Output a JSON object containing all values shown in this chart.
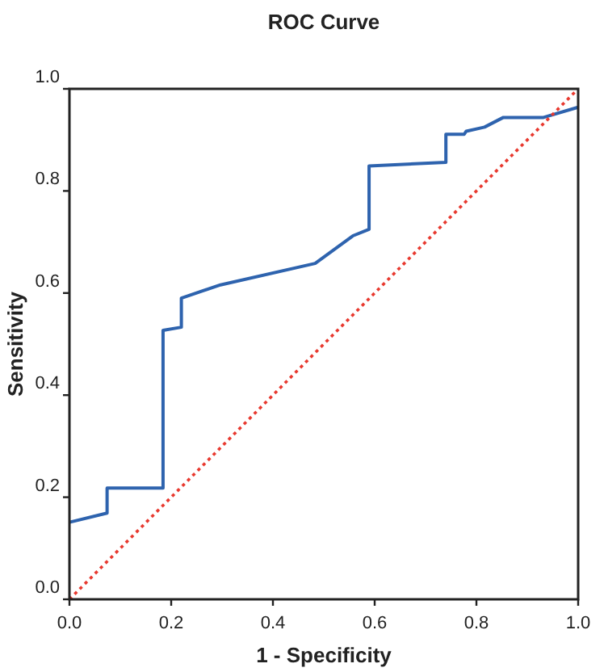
{
  "chart_data": {
    "type": "line",
    "title": "ROC Curve",
    "xlabel": "1 - Specificity",
    "ylabel": "Sensitivity",
    "xlim": [
      0,
      1
    ],
    "ylim": [
      0,
      1
    ],
    "xticks": [
      {
        "value": 0,
        "label": "0.0"
      },
      0.2,
      0.4,
      0.6,
      0.8,
      {
        "value": 1,
        "label": "1.0"
      }
    ],
    "yticks": [
      {
        "value": 0,
        "label": "0.0"
      },
      0.2,
      0.4,
      0.6,
      0.8,
      {
        "value": 1,
        "label": "1.0"
      }
    ],
    "grid": false,
    "series": [
      {
        "color": "#2e63ae",
        "line_style": "solid",
        "x": [
          0,
          0.074,
          0.074,
          0.184,
          0.184,
          0.22,
          0.22,
          0.297,
          0.483,
          0.557,
          0.589,
          0.589,
          0.74,
          0.74,
          0.776,
          0.78,
          0.816,
          0.853,
          0.932,
          1
        ],
        "values": [
          0.151,
          0.169,
          0.218,
          0.218,
          0.527,
          0.533,
          0.59,
          0.616,
          0.658,
          0.712,
          0.725,
          0.849,
          0.856,
          0.911,
          0.911,
          0.917,
          0.925,
          0.944,
          0.944,
          0.964
        ]
      },
      {
        "color": "#e8392f",
        "line_style": "dotted",
        "x": [
          0,
          1
        ],
        "values": [
          0,
          1
        ]
      }
    ]
  }
}
